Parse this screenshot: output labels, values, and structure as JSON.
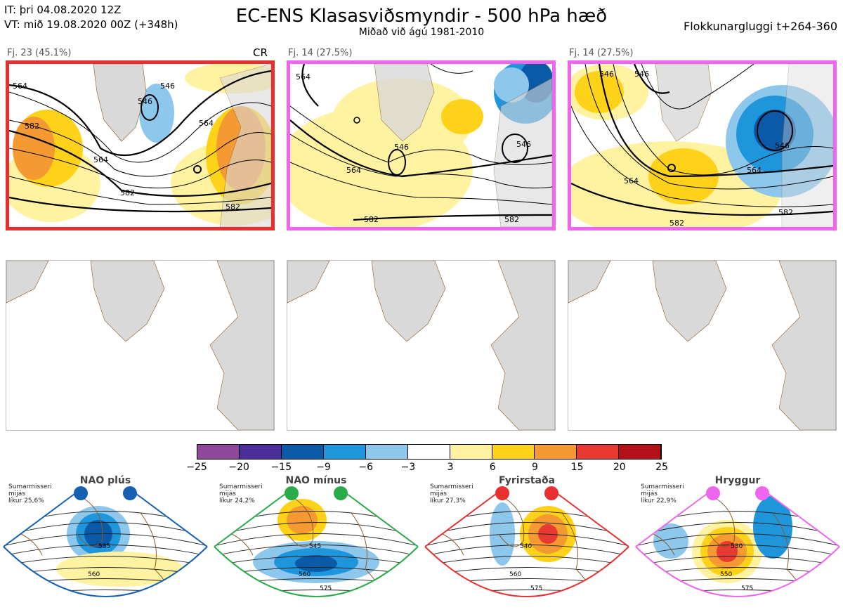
{
  "header": {
    "it": "IT: þri 04.08.2020 12Z",
    "vt": "VT: mið 19.08.2020 00Z  (+348h)",
    "title": "EC-ENS Klasasviðsmyndir - 500 hPa hæð",
    "subtitle": "Miðað við ágú 1981-2010",
    "window": "Flokkunargluggi t+264-360"
  },
  "clusters": [
    {
      "label": "Fj. 23 (45.1%)",
      "tag": "CR",
      "frame_color": "#e53030",
      "contours": [
        "564",
        "546",
        "546",
        "582",
        "564",
        "564",
        "582",
        "582"
      ]
    },
    {
      "label": "Fj. 14 (27.5%)",
      "tag": "",
      "frame_color": "#ee66ee",
      "contours": [
        "564",
        "546",
        "564",
        "582",
        "582",
        "546"
      ]
    },
    {
      "label": "Fj. 14 (27.5%)",
      "tag": "",
      "frame_color": "#ee66ee",
      "contours": [
        "546",
        "546",
        "564",
        "564",
        "582",
        "582",
        "546"
      ]
    }
  ],
  "colorbar": {
    "ticks": [
      "−25",
      "−20",
      "−15",
      "−9",
      "−6",
      "−3",
      "3",
      "6",
      "9",
      "15",
      "20",
      "25"
    ],
    "colors": [
      "#8e479a",
      "#4a2d99",
      "#0a5aa8",
      "#1f96db",
      "#8ec7ec",
      "#ffffff",
      "#fff2a0",
      "#ffd21a",
      "#f59a32",
      "#e83a30",
      "#b3101a"
    ]
  },
  "regimes": [
    {
      "title": "NAO plús",
      "stats": [
        "Sumarmisseri",
        "mijás",
        "líkur 25,6%"
      ],
      "color": "#1560b0",
      "contours": [
        "535",
        "560"
      ]
    },
    {
      "title": "NAO mínus",
      "stats": [
        "Sumarmisseri",
        "mijás",
        "líkur 24,2%"
      ],
      "color": "#2aab4a",
      "contours": [
        "545",
        "560",
        "575"
      ]
    },
    {
      "title": "Fyrirstaða",
      "stats": [
        "Sumarmisseri",
        "mijás",
        "líkur 27,3%"
      ],
      "color": "#e83030",
      "contours": [
        "540",
        "560",
        "575"
      ]
    },
    {
      "title": "Hryggur",
      "stats": [
        "Sumarmisseri",
        "mijás",
        "líkur 22,9%"
      ],
      "color": "#ee66ee",
      "contours": [
        "530",
        "550",
        "575"
      ]
    }
  ]
}
